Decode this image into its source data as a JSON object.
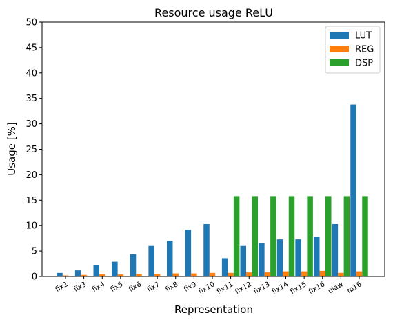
{
  "chart_data": {
    "type": "bar",
    "title": "Resource usage ReLU",
    "xlabel": "Representation",
    "ylabel": "Usage [%]",
    "ylim": [
      0,
      50
    ],
    "yticks": [
      0,
      5,
      10,
      15,
      20,
      25,
      30,
      35,
      40,
      45,
      50
    ],
    "grid": false,
    "legend_position": "top-right",
    "categories": [
      "fix2",
      "fix3",
      "fix4",
      "fix5",
      "fix6",
      "fix7",
      "fix8",
      "fix9",
      "fix10",
      "fix11",
      "fix12",
      "fix13",
      "fix14",
      "fix15",
      "fix16",
      "ulaw",
      "fp16"
    ],
    "series": [
      {
        "name": "LUT",
        "color": "#1f77b4",
        "values": [
          0.7,
          1.2,
          2.3,
          2.9,
          4.4,
          6.0,
          7.0,
          9.2,
          10.3,
          3.6,
          6.0,
          6.6,
          7.3,
          7.3,
          7.8,
          10.3,
          33.8
        ]
      },
      {
        "name": "REG",
        "color": "#ff7f0e",
        "values": [
          0.2,
          0.3,
          0.4,
          0.4,
          0.5,
          0.5,
          0.6,
          0.6,
          0.7,
          0.7,
          0.8,
          0.8,
          1.0,
          1.0,
          1.1,
          0.7,
          1.0
        ]
      },
      {
        "name": "DSP",
        "color": "#2ca02c",
        "values": [
          0,
          0,
          0,
          0,
          0,
          0,
          0,
          0,
          0,
          15.8,
          15.8,
          15.8,
          15.8,
          15.8,
          15.8,
          15.8,
          15.8
        ]
      }
    ]
  }
}
